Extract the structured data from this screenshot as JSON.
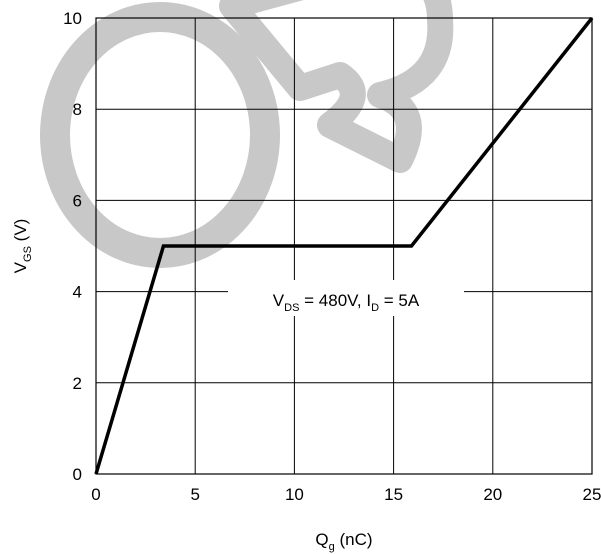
{
  "chart_data": {
    "type": "line",
    "title": "",
    "xlabel": {
      "main": "Q",
      "sub": "g",
      "suffix": " (nC)"
    },
    "ylabel": {
      "main": "V",
      "sub": "GS",
      "suffix": " (V)"
    },
    "xlim": [
      0,
      25
    ],
    "ylim": [
      0,
      10
    ],
    "x_ticks": [
      0,
      5,
      10,
      15,
      20,
      25
    ],
    "y_ticks": [
      0,
      2,
      4,
      6,
      8,
      10
    ],
    "x_tick_labels": [
      "0",
      "5",
      "10",
      "15",
      "20",
      "25"
    ],
    "y_tick_labels": [
      "0",
      "2",
      "4",
      "6",
      "8",
      "10"
    ],
    "grid": true,
    "annotation": {
      "parts": [
        {
          "text": "V",
          "sub": false
        },
        {
          "text": "DS",
          "sub": true
        },
        {
          "text": " = 480V, I",
          "sub": false
        },
        {
          "text": "D",
          "sub": true
        },
        {
          "text": " = 5A",
          "sub": false
        }
      ]
    },
    "series": [
      {
        "x": [
          0,
          3.4,
          15.9,
          25
        ],
        "y": [
          0,
          5.0,
          5.0,
          10.0
        ]
      }
    ],
    "watermark_text": "OB",
    "colors": {
      "line": "#000000",
      "grid": "#000000",
      "watermark": "#c8c8c8"
    }
  }
}
